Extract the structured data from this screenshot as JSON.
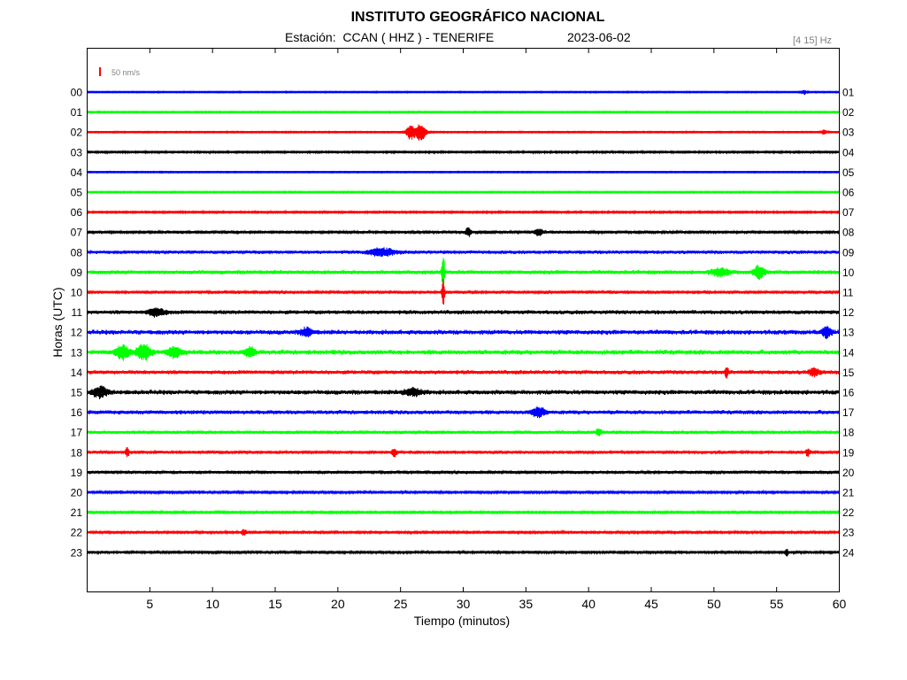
{
  "header": {
    "institution": "INSTITUTO GEOGRÁFICO NACIONAL",
    "station": "Estación:  CCAN ( HHZ ) - TENERIFE",
    "date": "2023-06-02",
    "filter": "[4 15] Hz"
  },
  "chart_data": {
    "type": "line",
    "title": "INSTITUTO GEOGRÁFICO NACIONAL",
    "xlabel": "Tiempo (minutos)",
    "ylabel": "Horas (UTC)",
    "xlim": [
      0,
      60
    ],
    "x_ticks": [
      "5",
      "10",
      "15",
      "20",
      "25",
      "30",
      "35",
      "40",
      "45",
      "50",
      "55",
      "60"
    ],
    "scale_label": "50 nm/s",
    "colors": {
      "blue": "#0000ff",
      "green": "#00ff00",
      "red": "#ff0000",
      "black": "#000000"
    },
    "color_cycle": [
      "blue",
      "green",
      "red",
      "black"
    ],
    "rows": [
      {
        "left": "00",
        "right": "01",
        "color": "blue",
        "noise": 0.8,
        "events": [
          {
            "minute": 57.2,
            "amp": 2.5,
            "width": 0.3
          }
        ]
      },
      {
        "left": "01",
        "right": "02",
        "color": "green",
        "noise": 0.9,
        "events": []
      },
      {
        "left": "02",
        "right": "03",
        "color": "red",
        "noise": 0.9,
        "events": [
          {
            "minute": 25.8,
            "amp": 8,
            "width": 0.5
          },
          {
            "minute": 26.6,
            "amp": 10,
            "width": 0.6
          },
          {
            "minute": 58.8,
            "amp": 3,
            "width": 0.3
          }
        ]
      },
      {
        "left": "03",
        "right": "04",
        "color": "black",
        "noise": 1.2,
        "events": []
      },
      {
        "left": "04",
        "right": "05",
        "color": "blue",
        "noise": 0.8,
        "events": []
      },
      {
        "left": "05",
        "right": "06",
        "color": "green",
        "noise": 0.9,
        "events": []
      },
      {
        "left": "06",
        "right": "07",
        "color": "red",
        "noise": 1.2,
        "events": []
      },
      {
        "left": "07",
        "right": "08",
        "color": "black",
        "noise": 1.8,
        "events": [
          {
            "minute": 30.4,
            "amp": 5,
            "width": 0.3
          },
          {
            "minute": 36.0,
            "amp": 4,
            "width": 0.5
          }
        ]
      },
      {
        "left": "08",
        "right": "09",
        "color": "blue",
        "noise": 2.2,
        "events": [
          {
            "minute": 23.5,
            "amp": 4,
            "width": 1.5
          }
        ]
      },
      {
        "left": "09",
        "right": "10",
        "color": "green",
        "noise": 2.6,
        "events": [
          {
            "minute": 28.4,
            "amp": 22,
            "width": 0.15
          },
          {
            "minute": 50.5,
            "amp": 4,
            "width": 1.0
          },
          {
            "minute": 53.6,
            "amp": 7,
            "width": 0.6
          }
        ]
      },
      {
        "left": "10",
        "right": "11",
        "color": "red",
        "noise": 2.0,
        "events": [
          {
            "minute": 28.4,
            "amp": 18,
            "width": 0.15
          }
        ]
      },
      {
        "left": "11",
        "right": "12",
        "color": "black",
        "noise": 2.6,
        "events": [
          {
            "minute": 5.5,
            "amp": 4,
            "width": 1.0
          }
        ]
      },
      {
        "left": "12",
        "right": "13",
        "color": "blue",
        "noise": 3.0,
        "events": [
          {
            "minute": 17.5,
            "amp": 5,
            "width": 0.6
          },
          {
            "minute": 59.0,
            "amp": 6,
            "width": 0.5
          }
        ]
      },
      {
        "left": "13",
        "right": "14",
        "color": "green",
        "noise": 3.0,
        "events": [
          {
            "minute": 2.8,
            "amp": 7,
            "width": 0.8
          },
          {
            "minute": 4.5,
            "amp": 8,
            "width": 0.8
          },
          {
            "minute": 7.0,
            "amp": 6,
            "width": 0.8
          },
          {
            "minute": 13.0,
            "amp": 5,
            "width": 0.6
          }
        ]
      },
      {
        "left": "14",
        "right": "15",
        "color": "red",
        "noise": 2.6,
        "events": [
          {
            "minute": 51.0,
            "amp": 6,
            "width": 0.2
          },
          {
            "minute": 58.0,
            "amp": 4,
            "width": 0.6
          }
        ]
      },
      {
        "left": "15",
        "right": "16",
        "color": "black",
        "noise": 3.0,
        "events": [
          {
            "minute": 1.0,
            "amp": 6,
            "width": 0.8
          },
          {
            "minute": 26.0,
            "amp": 4,
            "width": 1.0
          }
        ]
      },
      {
        "left": "16",
        "right": "17",
        "color": "blue",
        "noise": 2.6,
        "events": [
          {
            "minute": 36.0,
            "amp": 5,
            "width": 0.8
          }
        ]
      },
      {
        "left": "17",
        "right": "18",
        "color": "green",
        "noise": 2.2,
        "events": [
          {
            "minute": 40.8,
            "amp": 4,
            "width": 0.3
          }
        ]
      },
      {
        "left": "18",
        "right": "19",
        "color": "red",
        "noise": 2.0,
        "events": [
          {
            "minute": 3.2,
            "amp": 5,
            "width": 0.2
          },
          {
            "minute": 24.5,
            "amp": 4,
            "width": 0.3
          },
          {
            "minute": 57.5,
            "amp": 5,
            "width": 0.2
          }
        ]
      },
      {
        "left": "19",
        "right": "20",
        "color": "black",
        "noise": 2.0,
        "events": []
      },
      {
        "left": "20",
        "right": "21",
        "color": "blue",
        "noise": 1.6,
        "events": []
      },
      {
        "left": "21",
        "right": "22",
        "color": "green",
        "noise": 1.4,
        "events": []
      },
      {
        "left": "22",
        "right": "23",
        "color": "red",
        "noise": 1.6,
        "events": [
          {
            "minute": 12.5,
            "amp": 3,
            "width": 0.3
          }
        ]
      },
      {
        "left": "23",
        "right": "24",
        "color": "black",
        "noise": 1.6,
        "events": [
          {
            "minute": 55.8,
            "amp": 4,
            "width": 0.2
          }
        ]
      }
    ]
  }
}
